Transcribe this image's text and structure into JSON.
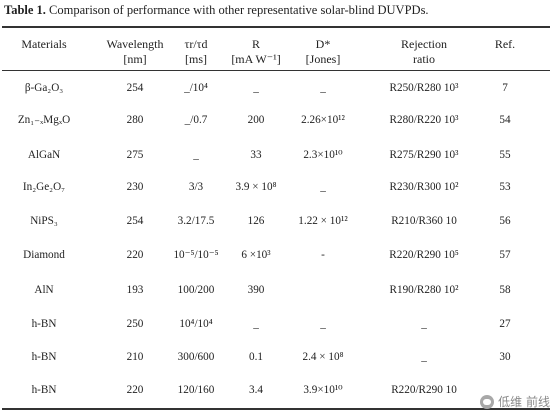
{
  "caption": {
    "label": "Table 1.",
    "text": "Comparison of performance with other representative solar-blind DUVPDs."
  },
  "headers": [
    {
      "key": "materials",
      "line1": "Materials",
      "line2": ""
    },
    {
      "key": "wavelength",
      "line1": "Wavelength",
      "line2": "[nm]"
    },
    {
      "key": "time",
      "line1": "τr/τd",
      "line2": "[ms]"
    },
    {
      "key": "r",
      "line1": "R",
      "line2": "[mA W⁻¹]"
    },
    {
      "key": "d",
      "line1": "D*",
      "line2": "[Jones]"
    },
    {
      "key": "rejection",
      "line1": "Rejection",
      "line2": "ratio"
    },
    {
      "key": "ref",
      "line1": "Ref.",
      "line2": ""
    }
  ],
  "rows": [
    {
      "material": "β-Ga₂O₃",
      "wavelength": "254",
      "time": "_/10⁴",
      "r": "_",
      "d": "_",
      "rejection": "R250/R280 10³",
      "ref": "7"
    },
    {
      "material": "Zn₁₋ₓMgₓO",
      "wavelength": "280",
      "time": "_/0.7",
      "r": "200",
      "d": "2.26×10¹²",
      "rejection": "R280/R220 10³",
      "ref": "54"
    },
    {
      "material": "AlGaN",
      "wavelength": "275",
      "time": "_",
      "r": "33",
      "d": "2.3×10¹⁰",
      "rejection": "R275/R290 10³",
      "ref": "55"
    },
    {
      "material": "In₂Ge₂O₇",
      "wavelength": "230",
      "time": "3/3",
      "r": "3.9 × 10⁸",
      "d": "_",
      "rejection": "R230/R300 10²",
      "ref": "53"
    },
    {
      "material": "NiPS₃",
      "wavelength": "254",
      "time": "3.2/17.5",
      "r": "126",
      "d": "1.22 × 10¹²",
      "rejection": "R210/R360 10",
      "ref": "56"
    },
    {
      "material": "Diamond",
      "wavelength": "220",
      "time": "10⁻⁵/10⁻⁵",
      "r": "6 ×10³",
      "d": "-",
      "rejection": "R220/R290 10⁵",
      "ref": "57"
    },
    {
      "material": "AlN",
      "wavelength": "193",
      "time": "100/200",
      "r": "390",
      "d": "",
      "rejection": "R190/R280 10²",
      "ref": "58"
    },
    {
      "material": "h-BN",
      "wavelength": "250",
      "time": "10⁴/10⁴",
      "r": "_",
      "d": "_",
      "rejection": "_",
      "ref": "27"
    },
    {
      "material": "h-BN",
      "wavelength": "210",
      "time": "300/600",
      "r": "0.1",
      "d": "2.4 × 10⁸",
      "rejection": "_",
      "ref": "30"
    },
    {
      "material": "h-BN",
      "wavelength": "220",
      "time": "120/160",
      "r": "3.4",
      "d": "3.9×10¹⁰",
      "rejection": "R220/R290 10",
      "ref": ""
    }
  ],
  "watermark": {
    "text": "低维 前线"
  }
}
